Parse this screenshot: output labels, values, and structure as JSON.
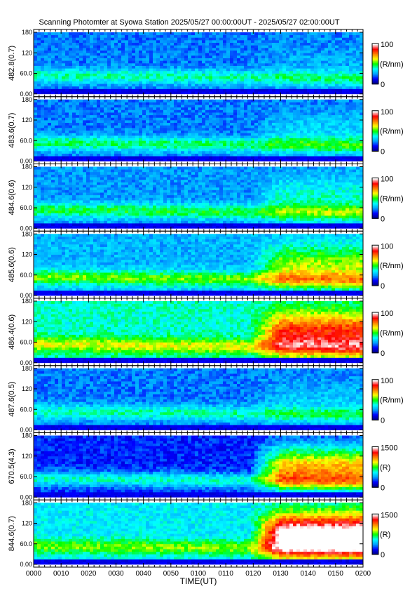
{
  "title": "Scanning Photomter at Syowa Station  2025/05/27 00:00:00UT - 2025/05/27 02:00:00UT",
  "xlabel": "TIME(UT)",
  "x_ticks": [
    "0000",
    "0010",
    "0020",
    "0030",
    "0040",
    "0050",
    "0100",
    "0110",
    "0120",
    "0130",
    "0140",
    "0150",
    "0200"
  ],
  "y_ticks": [
    "0.00",
    "60.0",
    "120",
    "180"
  ],
  "chart_data": {
    "type": "heatmap",
    "title": "Scanning Photomter at Syowa Station  2025/05/27 00:00:00UT - 2025/05/27 02:00:00UT",
    "xlabel": "TIME(UT)",
    "xlim": [
      "0000",
      "0200"
    ],
    "ylim": [
      0,
      180
    ],
    "panels": [
      {
        "ylabel": "482.8(0.7)",
        "cbar_max": "100",
        "cbar_min": "0",
        "cbar_unit": "(R/nm)",
        "zmax": 100,
        "zmin": 0,
        "bg": 0.22,
        "band": 0.42,
        "bright": 0.05
      },
      {
        "ylabel": "483.6(0.7)",
        "cbar_max": "100",
        "cbar_min": "0",
        "cbar_unit": "(R/nm)",
        "zmax": 100,
        "zmin": 0,
        "bg": 0.22,
        "band": 0.45,
        "bright": 0.1
      },
      {
        "ylabel": "484.6(0.6)",
        "cbar_max": "100",
        "cbar_min": "0",
        "cbar_unit": "(R/nm)",
        "zmax": 100,
        "zmin": 0,
        "bg": 0.25,
        "band": 0.48,
        "bright": 0.15
      },
      {
        "ylabel": "485.6(0.6)",
        "cbar_max": "100",
        "cbar_min": "0",
        "cbar_unit": "(R/nm)",
        "zmax": 100,
        "zmin": 0,
        "bg": 0.28,
        "band": 0.55,
        "bright": 0.3
      },
      {
        "ylabel": "486.4(0.6)",
        "cbar_max": "100",
        "cbar_min": "0",
        "cbar_unit": "(R/nm)",
        "zmax": 100,
        "zmin": 0,
        "bg": 0.4,
        "band": 0.62,
        "bright": 0.45
      },
      {
        "ylabel": "487.6(0.5)",
        "cbar_max": "100",
        "cbar_min": "0",
        "cbar_unit": "(R/nm)",
        "zmax": 100,
        "zmin": 0,
        "bg": 0.22,
        "band": 0.42,
        "bright": 0.08
      },
      {
        "ylabel": "670.5(4.3)",
        "cbar_max": "1500",
        "cbar_min": "0",
        "cbar_unit": "(R)",
        "zmax": 1500,
        "zmin": 0,
        "bg": 0.15,
        "band": 0.4,
        "bright": 0.55
      },
      {
        "ylabel": "844.6(0.7)",
        "cbar_max": "1500",
        "cbar_min": "0",
        "cbar_unit": "(R)",
        "zmax": 1500,
        "zmin": 0,
        "bg": 0.35,
        "band": 0.55,
        "bright": 0.75
      }
    ]
  },
  "colors": {
    "scale": [
      "#000080",
      "#0000ff",
      "#00a0ff",
      "#00ffff",
      "#00ff00",
      "#ffff00",
      "#ff8000",
      "#ff0000",
      "#ffffff"
    ]
  }
}
